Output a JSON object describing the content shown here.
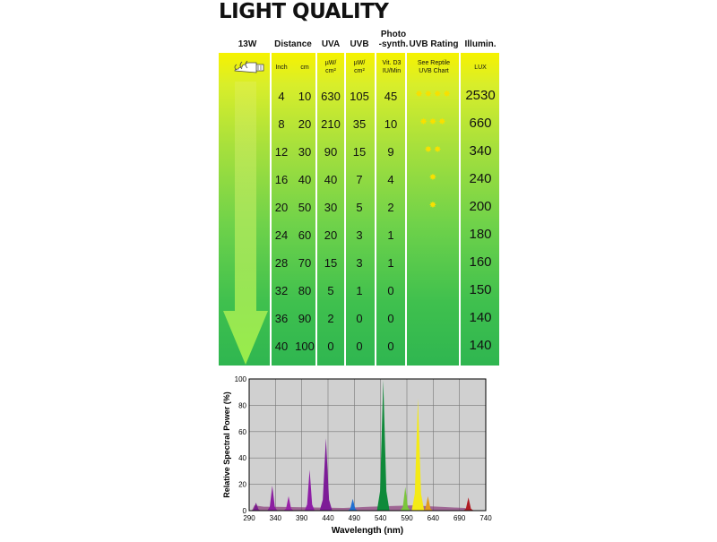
{
  "title": "LIGHT QUALITY",
  "table": {
    "headers": {
      "wattage": "13W",
      "distance": "Distance",
      "uva": "UVA",
      "uvb": "UVB",
      "photo_line1": "Photo",
      "photo_line2": "-synth.",
      "uvb_rating": "UVB Rating",
      "illum": "Illumin."
    },
    "subheaders": {
      "inch": "Inch",
      "cm": "cm",
      "uva_unit_1": "µW/",
      "uva_unit_2": "cm²",
      "uvb_unit_1": "µW/",
      "uvb_unit_2": "cm²",
      "vitd3_1": "Vit. D3",
      "vitd3_2": "IU/Min",
      "reptile_1": "See Reptile",
      "reptile_2": "UVB Chart",
      "lux": "LUX"
    },
    "rows": [
      {
        "inch": "4",
        "cm": "10",
        "uva": "630",
        "uvb": "105",
        "vitd3": "45",
        "stars": 4,
        "lux": "2530"
      },
      {
        "inch": "8",
        "cm": "20",
        "uva": "210",
        "uvb": "35",
        "vitd3": "10",
        "stars": 3,
        "lux": "660"
      },
      {
        "inch": "12",
        "cm": "30",
        "uva": "90",
        "uvb": "15",
        "vitd3": "9",
        "stars": 2,
        "lux": "340"
      },
      {
        "inch": "16",
        "cm": "40",
        "uva": "40",
        "uvb": "7",
        "vitd3": "4",
        "stars": 1,
        "lux": "240"
      },
      {
        "inch": "20",
        "cm": "50",
        "uva": "30",
        "uvb": "5",
        "vitd3": "2",
        "stars": 1,
        "lux": "200"
      },
      {
        "inch": "24",
        "cm": "60",
        "uva": "20",
        "uvb": "3",
        "vitd3": "1",
        "stars": 0,
        "lux": "180"
      },
      {
        "inch": "28",
        "cm": "70",
        "uva": "15",
        "uvb": "3",
        "vitd3": "1",
        "stars": 0,
        "lux": "160"
      },
      {
        "inch": "32",
        "cm": "80",
        "uva": "5",
        "uvb": "1",
        "vitd3": "0",
        "stars": 0,
        "lux": "150"
      },
      {
        "inch": "36",
        "cm": "90",
        "uva": "2",
        "uvb": "0",
        "vitd3": "0",
        "stars": 0,
        "lux": "140"
      },
      {
        "inch": "40",
        "cm": "100",
        "uva": "0",
        "uvb": "0",
        "vitd3": "0",
        "stars": 0,
        "lux": "140"
      }
    ]
  },
  "chart_data": {
    "type": "area",
    "xlabel": "Wavelength (nm)",
    "ylabel": "Relative Spectral Power (%)",
    "xlim": [
      290,
      740
    ],
    "ylim": [
      0,
      100
    ],
    "xticks": [
      290,
      340,
      390,
      440,
      490,
      540,
      590,
      640,
      690,
      740
    ],
    "yticks": [
      0,
      20,
      40,
      60,
      80,
      100
    ],
    "grid": true,
    "background": "#d0d0d0",
    "peaks": [
      {
        "x": 303,
        "y": 6,
        "color": "#7a1d8e"
      },
      {
        "x": 334,
        "y": 19,
        "color": "#8b1fa0"
      },
      {
        "x": 365,
        "y": 11,
        "color": "#9a22a8"
      },
      {
        "x": 405,
        "y": 31,
        "color": "#8e1fa6"
      },
      {
        "x": 436,
        "y": 55,
        "color": "#7d1c97"
      },
      {
        "x": 487,
        "y": 9,
        "color": "#1f6fd1"
      },
      {
        "x": 545,
        "y": 99,
        "color": "#0f8a3a"
      },
      {
        "x": 587,
        "y": 18,
        "color": "#7ac63a"
      },
      {
        "x": 611,
        "y": 85,
        "color": "#f4ea16"
      },
      {
        "x": 630,
        "y": 11,
        "color": "#e09a20"
      },
      {
        "x": 707,
        "y": 10,
        "color": "#b01c24"
      }
    ]
  }
}
